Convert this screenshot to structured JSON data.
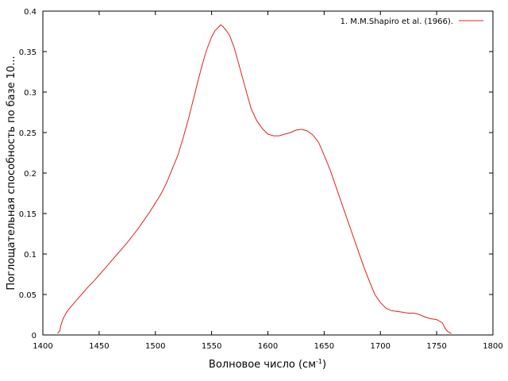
{
  "chart_data": {
    "type": "line",
    "xlabel": "Волновое число (см",
    "xlabel_sup": "-1",
    "xlabel_end": ")",
    "ylabel": "Поглощательная способность по базе 10...",
    "xlim": [
      1400,
      1800
    ],
    "ylim": [
      0,
      0.4
    ],
    "xticks": [
      1400,
      1450,
      1500,
      1550,
      1600,
      1650,
      1700,
      1750,
      1800
    ],
    "yticks": [
      0,
      0.05,
      0.1,
      0.15,
      0.2,
      0.25,
      0.3,
      0.35,
      0.4
    ],
    "ytick_labels": [
      "0",
      "0.05",
      "0.1",
      "0.15",
      "0.2",
      "0.25",
      "0.3",
      "0.35",
      "0.4"
    ],
    "legend_position": "top-right",
    "grid": false,
    "series": [
      {
        "name": "1. M.M.Shapiro et al. (1966).",
        "color": "#e02020",
        "x": [
          1413,
          1415,
          1416,
          1418,
          1421,
          1425,
          1430,
          1435,
          1440,
          1445,
          1450,
          1455,
          1460,
          1465,
          1470,
          1475,
          1480,
          1485,
          1490,
          1495,
          1500,
          1505,
          1510,
          1515,
          1520,
          1525,
          1530,
          1535,
          1540,
          1545,
          1550,
          1553,
          1556,
          1558,
          1560,
          1563,
          1566,
          1570,
          1575,
          1580,
          1585,
          1590,
          1595,
          1600,
          1605,
          1610,
          1615,
          1620,
          1625,
          1630,
          1635,
          1640,
          1645,
          1650,
          1655,
          1660,
          1665,
          1670,
          1675,
          1680,
          1685,
          1690,
          1695,
          1700,
          1705,
          1710,
          1715,
          1720,
          1725,
          1730,
          1735,
          1740,
          1745,
          1750,
          1755,
          1758,
          1760,
          1763
        ],
        "y": [
          0.002,
          0.005,
          0.012,
          0.02,
          0.028,
          0.035,
          0.043,
          0.051,
          0.059,
          0.066,
          0.074,
          0.082,
          0.09,
          0.098,
          0.106,
          0.114,
          0.123,
          0.132,
          0.142,
          0.152,
          0.163,
          0.174,
          0.188,
          0.205,
          0.222,
          0.245,
          0.27,
          0.298,
          0.325,
          0.35,
          0.368,
          0.376,
          0.38,
          0.383,
          0.381,
          0.376,
          0.37,
          0.355,
          0.33,
          0.305,
          0.28,
          0.265,
          0.255,
          0.248,
          0.246,
          0.246,
          0.248,
          0.25,
          0.253,
          0.254,
          0.252,
          0.247,
          0.238,
          0.222,
          0.205,
          0.185,
          0.165,
          0.145,
          0.125,
          0.105,
          0.085,
          0.067,
          0.05,
          0.04,
          0.033,
          0.03,
          0.029,
          0.028,
          0.027,
          0.027,
          0.025,
          0.022,
          0.02,
          0.019,
          0.015,
          0.007,
          0.004,
          0.002
        ]
      }
    ]
  }
}
